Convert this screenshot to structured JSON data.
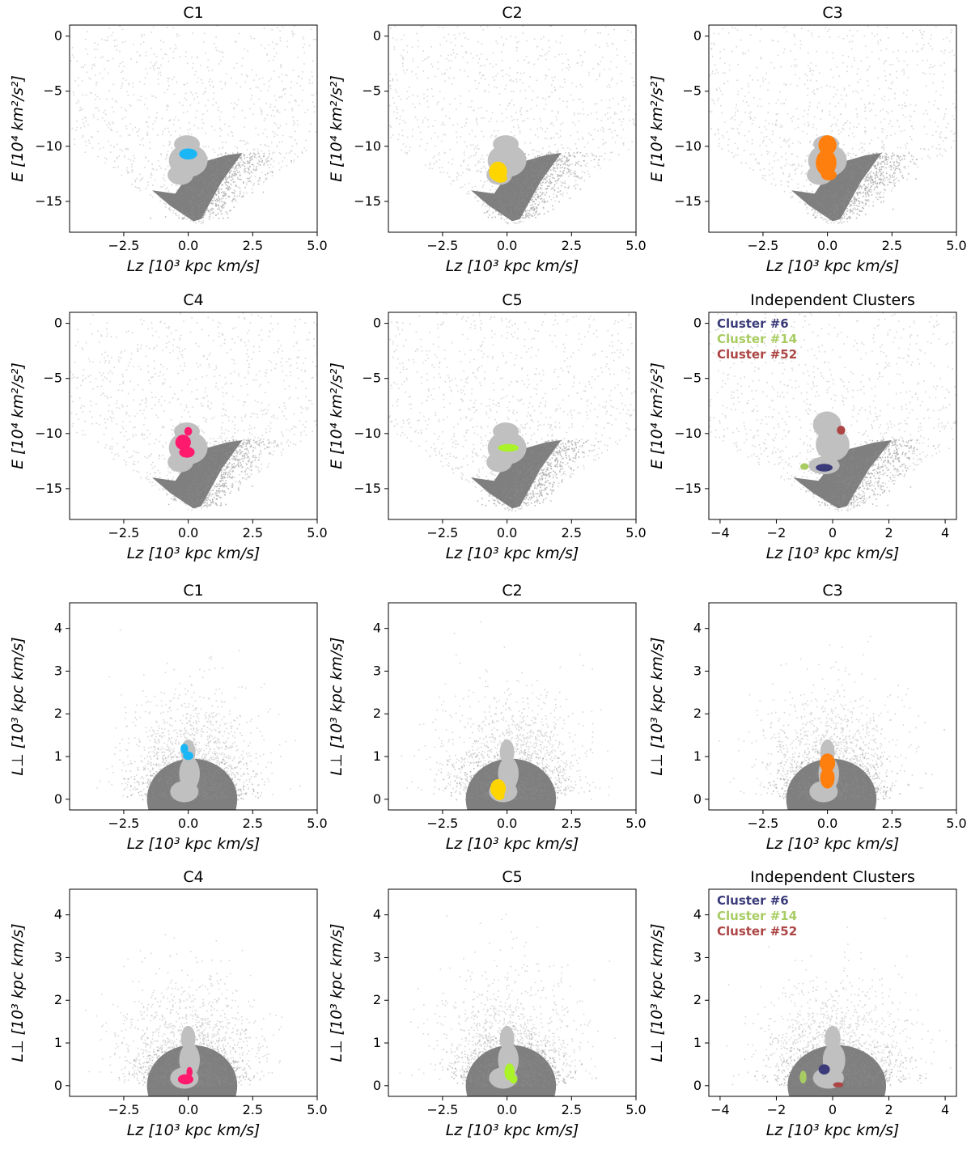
{
  "chart_data": [
    {
      "type": "scatter",
      "row": 0,
      "col": 0,
      "title": "C1",
      "xlabel": "Lz [10³ kpc km/s]",
      "ylabel": "E [10⁴ km²/s²]",
      "xlim": [
        -4.6,
        5.0
      ],
      "ylim": [
        -17.8,
        1.0
      ],
      "xticks": [
        -2.5,
        0.0,
        2.5,
        5.0
      ],
      "yticks": [
        0,
        -5,
        -10,
        -15
      ],
      "highlights": [
        {
          "color": "#1ab6f5",
          "blobs": [
            [
              0.0,
              -10.7,
              0.35,
              0.5
            ]
          ]
        }
      ],
      "legend": []
    },
    {
      "type": "scatter",
      "row": 0,
      "col": 1,
      "title": "C2",
      "xlabel": "Lz [10³ kpc km/s]",
      "ylabel": "E [10⁴ km²/s²]",
      "xlim": [
        -4.6,
        5.0
      ],
      "ylim": [
        -17.8,
        1.0
      ],
      "xticks": [
        -2.5,
        0.0,
        2.5,
        5.0
      ],
      "yticks": [
        0,
        -5,
        -10,
        -15
      ],
      "highlights": [
        {
          "color": "#ffd500",
          "blobs": [
            [
              -0.35,
              -12.3,
              0.35,
              0.9
            ],
            [
              -0.25,
              -12.9,
              0.25,
              0.4
            ]
          ]
        }
      ],
      "legend": []
    },
    {
      "type": "scatter",
      "row": 0,
      "col": 2,
      "title": "C3",
      "xlabel": "Lz [10³ kpc km/s]",
      "ylabel": "E [10⁴ km²/s²]",
      "xlim": [
        -4.6,
        5.0
      ],
      "ylim": [
        -17.8,
        1.0
      ],
      "xticks": [
        -2.5,
        0.0,
        2.5,
        5.0
      ],
      "yticks": [
        0,
        -5,
        -10,
        -15
      ],
      "highlights": [
        {
          "color": "#ff7f0e",
          "blobs": [
            [
              0.0,
              -9.9,
              0.35,
              0.9
            ],
            [
              -0.05,
              -11.5,
              0.4,
              1.2
            ],
            [
              0.05,
              -12.6,
              0.3,
              0.5
            ]
          ]
        }
      ],
      "legend": []
    },
    {
      "type": "scatter",
      "row": 1,
      "col": 0,
      "title": "C4",
      "xlabel": "Lz [10³ kpc km/s]",
      "ylabel": "E [10⁴ km²/s²]",
      "xlim": [
        -4.6,
        5.0
      ],
      "ylim": [
        -17.8,
        1.0
      ],
      "xticks": [
        -2.5,
        0.0,
        2.5,
        5.0
      ],
      "yticks": [
        0,
        -5,
        -10,
        -15
      ],
      "highlights": [
        {
          "color": "#ff1a6e",
          "blobs": [
            [
              -0.2,
              -10.8,
              0.3,
              0.7
            ],
            [
              0.0,
              -9.8,
              0.15,
              0.4
            ],
            [
              -0.05,
              -11.7,
              0.3,
              0.5
            ]
          ]
        }
      ],
      "legend": []
    },
    {
      "type": "scatter",
      "row": 1,
      "col": 1,
      "title": "C5",
      "xlabel": "Lz [10³ kpc km/s]",
      "ylabel": "E [10⁴ km²/s²]",
      "xlim": [
        -4.6,
        5.0
      ],
      "ylim": [
        -17.8,
        1.0
      ],
      "xticks": [
        -2.5,
        0.0,
        2.5,
        5.0
      ],
      "yticks": [
        0,
        -5,
        -10,
        -15
      ],
      "highlights": [
        {
          "color": "#aaf22a",
          "blobs": [
            [
              0.05,
              -11.3,
              0.4,
              0.35
            ]
          ]
        }
      ],
      "legend": []
    },
    {
      "type": "scatter",
      "row": 1,
      "col": 2,
      "title": "Independent Clusters",
      "xlabel": "Lz [10³ kpc km/s]",
      "ylabel": "E [10⁴ km²/s²]",
      "xlim": [
        -4.4,
        4.4
      ],
      "ylim": [
        -17.8,
        1.0
      ],
      "xticks": [
        -4,
        -2,
        0,
        2,
        4
      ],
      "yticks": [
        0,
        -5,
        -10,
        -15
      ],
      "highlights": [
        {
          "color": "#3b3b7a",
          "blobs": [
            [
              -0.3,
              -13.1,
              0.3,
              0.35
            ]
          ]
        },
        {
          "color": "#a8cc62",
          "blobs": [
            [
              -1.0,
              -13.0,
              0.15,
              0.3
            ]
          ]
        },
        {
          "color": "#ad4545",
          "blobs": [
            [
              0.3,
              -9.7,
              0.15,
              0.4
            ]
          ]
        }
      ],
      "legend": [
        {
          "label": "Cluster #6",
          "color": "#3b3b7a"
        },
        {
          "label": "Cluster #14",
          "color": "#a8cc62"
        },
        {
          "label": "Cluster #52",
          "color": "#ad4545"
        }
      ]
    },
    {
      "type": "scatter",
      "row": 2,
      "col": 0,
      "title": "C1",
      "xlabel": "Lz [10³ kpc km/s]",
      "ylabel": "L⊥ [10³ kpc km/s]",
      "xlim": [
        -4.6,
        5.0
      ],
      "ylim": [
        -0.25,
        4.6
      ],
      "xticks": [
        -2.5,
        0.0,
        2.5,
        5.0
      ],
      "yticks": [
        0,
        1,
        2,
        3,
        4
      ],
      "highlights": [
        {
          "color": "#1ab6f5",
          "blobs": [
            [
              -0.15,
              1.18,
              0.15,
              0.12
            ],
            [
              0.0,
              1.02,
              0.2,
              0.1
            ]
          ]
        }
      ],
      "legend": []
    },
    {
      "type": "scatter",
      "row": 2,
      "col": 1,
      "title": "C2",
      "xlabel": "Lz [10³ kpc km/s]",
      "ylabel": "L⊥ [10³ kpc km/s]",
      "xlim": [
        -4.6,
        5.0
      ],
      "ylim": [
        -0.25,
        4.6
      ],
      "xticks": [
        -2.5,
        0.0,
        2.5,
        5.0
      ],
      "yticks": [
        0,
        1,
        2,
        3,
        4
      ],
      "highlights": [
        {
          "color": "#ffd500",
          "blobs": [
            [
              -0.35,
              0.25,
              0.3,
              0.22
            ],
            [
              -0.3,
              0.08,
              0.2,
              0.1
            ]
          ]
        }
      ],
      "legend": []
    },
    {
      "type": "scatter",
      "row": 2,
      "col": 2,
      "title": "C3",
      "xlabel": "Lz [10³ kpc km/s]",
      "ylabel": "L⊥ [10³ kpc km/s]",
      "xlim": [
        -4.6,
        5.0
      ],
      "ylim": [
        -0.25,
        4.6
      ],
      "xticks": [
        -2.5,
        0.0,
        2.5,
        5.0
      ],
      "yticks": [
        0,
        1,
        2,
        3,
        4
      ],
      "highlights": [
        {
          "color": "#ff7f0e",
          "blobs": [
            [
              0.0,
              0.85,
              0.3,
              0.22
            ],
            [
              0.0,
              0.5,
              0.28,
              0.25
            ]
          ]
        }
      ],
      "legend": []
    },
    {
      "type": "scatter",
      "row": 3,
      "col": 0,
      "title": "C4",
      "xlabel": "Lz [10³ kpc km/s]",
      "ylabel": "L⊥ [10³ kpc km/s]",
      "xlim": [
        -4.6,
        5.0
      ],
      "ylim": [
        -0.25,
        4.6
      ],
      "xticks": [
        -2.5,
        0.0,
        2.5,
        5.0
      ],
      "yticks": [
        0,
        1,
        2,
        3,
        4
      ],
      "highlights": [
        {
          "color": "#ff1a6e",
          "blobs": [
            [
              -0.1,
              0.15,
              0.3,
              0.12
            ],
            [
              0.05,
              0.32,
              0.12,
              0.12
            ]
          ]
        }
      ],
      "legend": []
    },
    {
      "type": "scatter",
      "row": 3,
      "col": 1,
      "title": "C5",
      "xlabel": "Lz [10³ kpc km/s]",
      "ylabel": "L⊥ [10³ kpc km/s]",
      "xlim": [
        -4.6,
        5.0
      ],
      "ylim": [
        -0.25,
        4.6
      ],
      "xticks": [
        -2.5,
        0.0,
        2.5,
        5.0
      ],
      "yticks": [
        0,
        1,
        2,
        3,
        4
      ],
      "highlights": [
        {
          "color": "#aaf22a",
          "blobs": [
            [
              0.1,
              0.32,
              0.2,
              0.2
            ],
            [
              0.25,
              0.15,
              0.15,
              0.1
            ]
          ]
        }
      ],
      "legend": []
    },
    {
      "type": "scatter",
      "row": 3,
      "col": 2,
      "title": "Independent Clusters",
      "xlabel": "Lz [10³ kpc km/s]",
      "ylabel": "L⊥ [10³ kpc km/s]",
      "xlim": [
        -4.4,
        4.4
      ],
      "ylim": [
        -0.25,
        4.6
      ],
      "xticks": [
        -4,
        -2,
        0,
        2,
        4
      ],
      "yticks": [
        0,
        1,
        2,
        3,
        4
      ],
      "highlights": [
        {
          "color": "#3b3b7a",
          "blobs": [
            [
              -0.3,
              0.38,
              0.2,
              0.12
            ]
          ]
        },
        {
          "color": "#a8cc62",
          "blobs": [
            [
              -1.05,
              0.2,
              0.12,
              0.15
            ]
          ]
        },
        {
          "color": "#ad4545",
          "blobs": [
            [
              0.2,
              0.02,
              0.18,
              0.06
            ]
          ]
        }
      ],
      "legend": [
        {
          "label": "Cluster #6",
          "color": "#3b3b7a"
        },
        {
          "label": "Cluster #14",
          "color": "#a8cc62"
        },
        {
          "label": "Cluster #52",
          "color": "#ad4545"
        }
      ]
    }
  ]
}
